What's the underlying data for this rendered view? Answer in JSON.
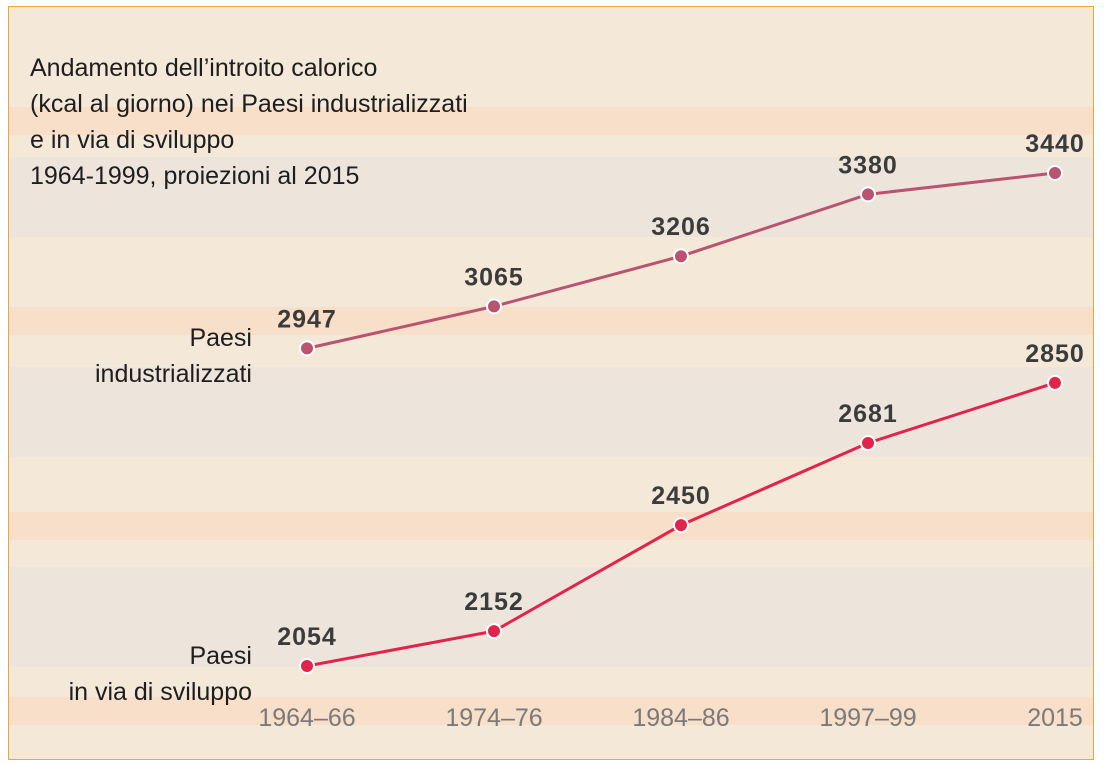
{
  "chart_data": {
    "type": "line",
    "title": "Andamento dell’introito calorico\n(kcal al giorno) nei Paesi industrializzati\ne in via di sviluppo\n1964-1999, proiezioni al 2015",
    "categories": [
      "1964–66",
      "1974–76",
      "1984–86",
      "1997–99",
      "2015"
    ],
    "series": [
      {
        "name": "Paesi\nindustrializzati",
        "color": "#b85470",
        "values": [
          2947,
          3065,
          3206,
          3380,
          3440
        ]
      },
      {
        "name": "Paesi\nin via di sviluppo",
        "color": "#e0244c",
        "values": [
          2054,
          2152,
          2450,
          2681,
          2850
        ]
      }
    ]
  }
}
